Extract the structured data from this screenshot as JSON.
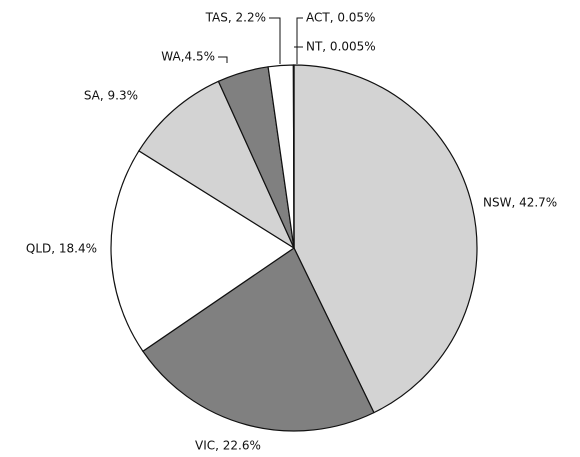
{
  "chart_data": {
    "type": "pie",
    "labels": [
      "NSW, 42.7%",
      "VIC, 22.6%",
      "QLD, 18.4%",
      "SA, 9.3%",
      "WA,4.5%",
      "TAS, 2.2%",
      "ACT, 0.05%",
      "NT, 0.005%"
    ],
    "values": [
      42.7,
      22.6,
      18.4,
      9.3,
      4.5,
      2.2,
      0.05,
      0.005
    ],
    "colors": [
      "#d3d3d3",
      "#808080",
      "#ffffff",
      "#d3d3d3",
      "#808080",
      "#ffffff",
      "#ffffff",
      "#ffffff"
    ]
  }
}
